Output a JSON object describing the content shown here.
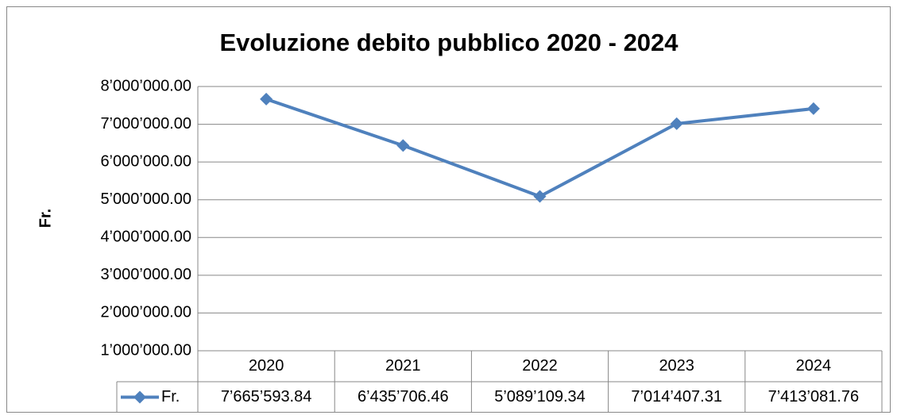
{
  "chart_data": {
    "type": "line",
    "title": "Evoluzione debito pubblico 2020 - 2024",
    "y_label": "Fr.",
    "categories": [
      "2020",
      "2021",
      "2022",
      "2023",
      "2024"
    ],
    "series": [
      {
        "name": "Fr.",
        "color": "#4f81bd",
        "values": [
          7665593.84,
          6435706.46,
          5089109.34,
          7014407.31,
          7413081.76
        ],
        "value_labels": [
          "7’665’593.84",
          "6’435’706.46",
          "5’089’109.34",
          "7’014’407.31",
          "7’413’081.76"
        ]
      }
    ],
    "ylim": [
      1000000,
      8000000
    ],
    "yticks": [
      {
        "value": 1000000,
        "label": "1’000’000.00"
      },
      {
        "value": 2000000,
        "label": "2’000’000.00"
      },
      {
        "value": 3000000,
        "label": "3’000’000.00"
      },
      {
        "value": 4000000,
        "label": "4’000’000.00"
      },
      {
        "value": 5000000,
        "label": "5’000’000.00"
      },
      {
        "value": 6000000,
        "label": "6’000’000.00"
      },
      {
        "value": 7000000,
        "label": "7’000’000.00"
      },
      {
        "value": 8000000,
        "label": "8’000’000.00"
      }
    ],
    "grid": true
  }
}
